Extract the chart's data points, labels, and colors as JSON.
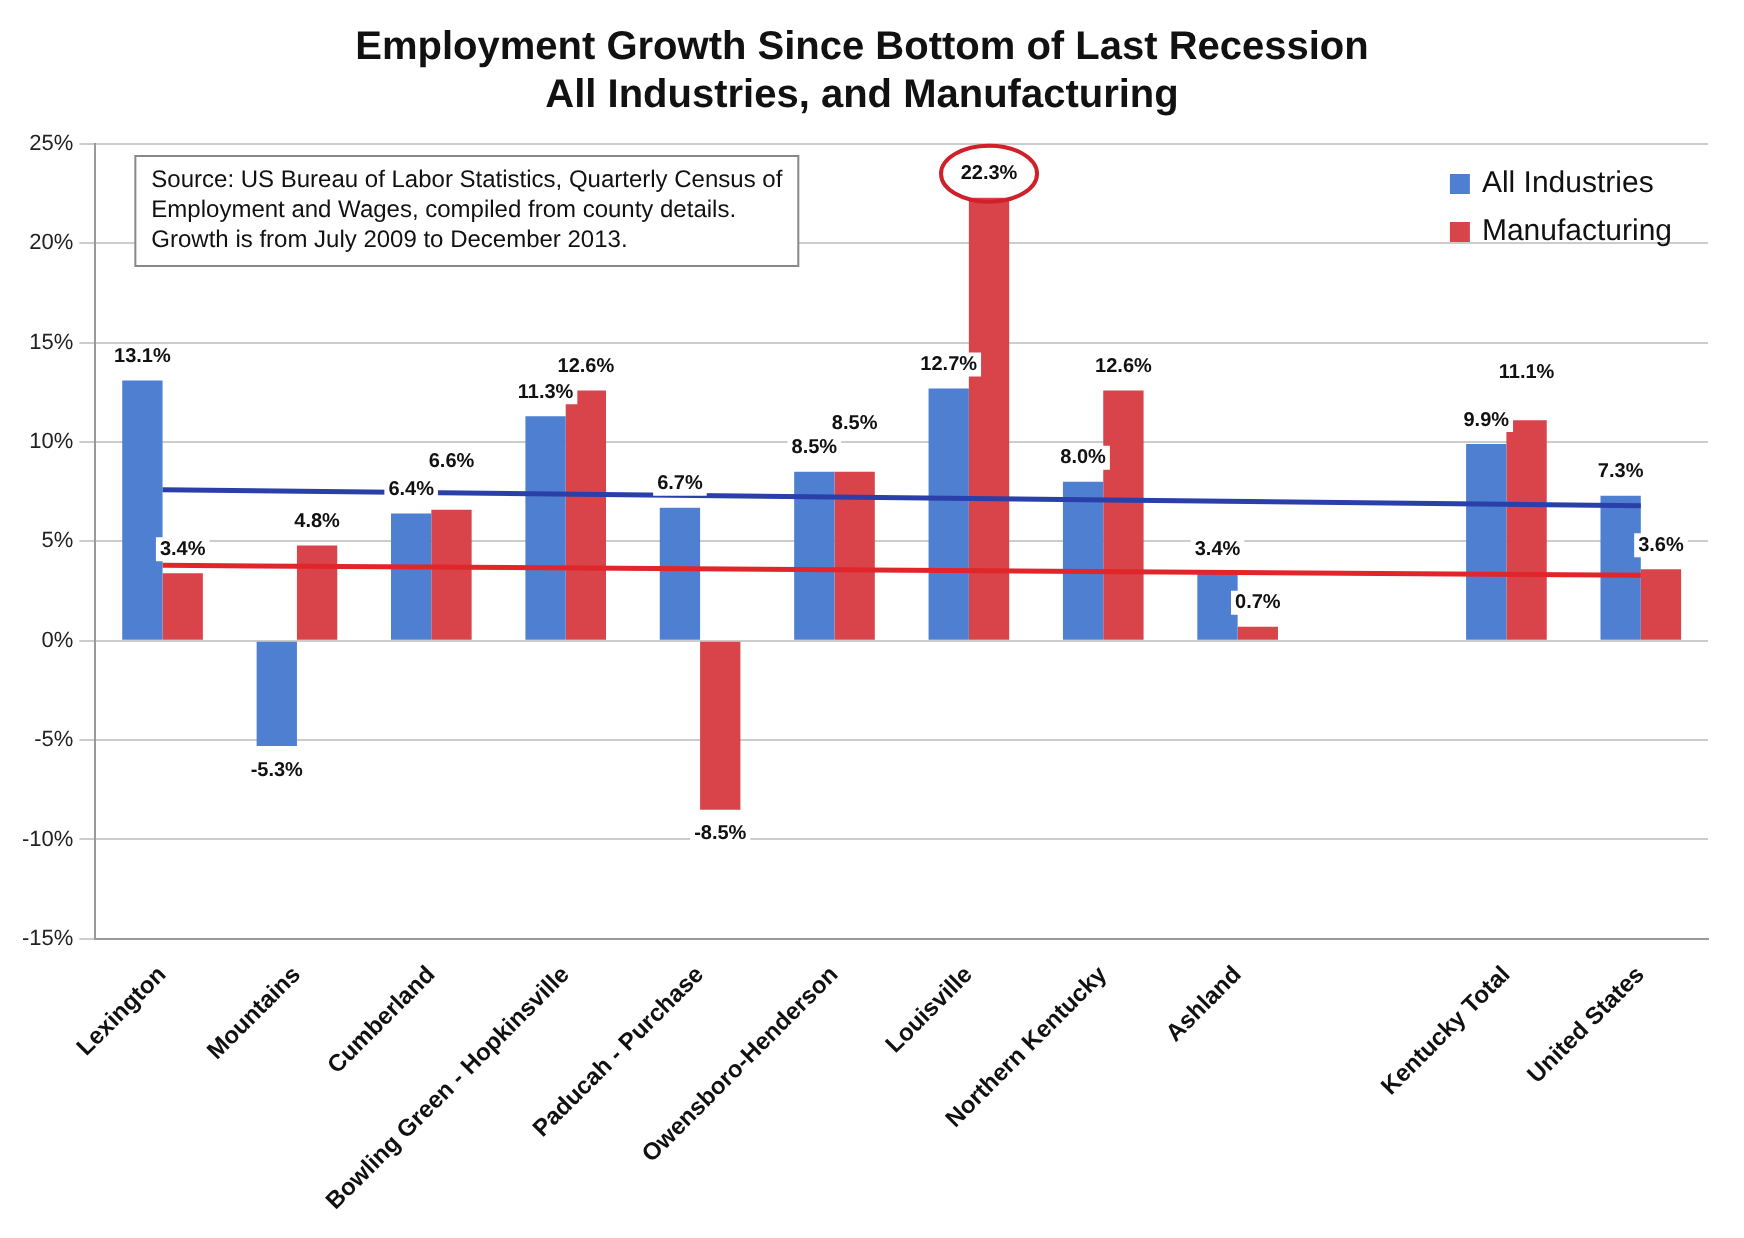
{
  "chart_data": {
    "type": "bar",
    "title": "Employment Growth Since Bottom of Last Recession\nAll Industries, and Manufacturing",
    "categories": [
      "Lexington",
      "Mountains",
      "Cumberland",
      "Bowling Green - Hopkinsville",
      "Paducah - Purchase",
      "Owensboro-Henderson",
      "Louisville",
      "Northern Kentucky",
      "Ashland",
      null,
      "Kentucky Total",
      "United States"
    ],
    "series": [
      {
        "name": "All Industries",
        "color": "#4f7fd0",
        "values": [
          13.1,
          -5.3,
          6.4,
          11.3,
          6.7,
          8.5,
          12.7,
          8.0,
          3.4,
          null,
          9.9,
          7.3
        ],
        "value_labels": [
          "13.1%",
          "-5.3%",
          "6.4%",
          "11.3%",
          "6.7%",
          "8.5%",
          "12.7%",
          "8.0%",
          "3.4%",
          null,
          "9.9%",
          "7.3%"
        ]
      },
      {
        "name": "Manufacturing",
        "color": "#d9434a",
        "values": [
          3.4,
          4.8,
          6.6,
          12.6,
          -8.5,
          8.5,
          22.3,
          12.6,
          0.7,
          null,
          11.1,
          3.6
        ],
        "value_labels": [
          "3.4%",
          "4.8%",
          "6.6%",
          "12.6%",
          "-8.5%",
          "8.5%",
          "22.3%",
          "12.6%",
          "0.7%",
          null,
          "11.1%",
          "3.6%"
        ]
      },
      {
        "type": "line",
        "color": "#2a3fa8",
        "values": [
          7.6,
          null,
          null,
          null,
          null,
          null,
          null,
          null,
          null,
          null,
          null,
          6.8
        ]
      },
      {
        "type": "line",
        "color": "#e0262a",
        "values": [
          3.8,
          null,
          null,
          null,
          null,
          null,
          null,
          null,
          null,
          null,
          null,
          3.3
        ]
      }
    ],
    "ylim": [
      -15,
      25
    ],
    "yticks": [
      {
        "value": -15,
        "label": "-15%"
      },
      {
        "value": -10,
        "label": "-10%"
      },
      {
        "value": -5,
        "label": "-5%"
      },
      {
        "value": 0,
        "label": "0%"
      },
      {
        "value": 5,
        "label": "5%"
      },
      {
        "value": 10,
        "label": "10%"
      },
      {
        "value": 15,
        "label": "15%"
      },
      {
        "value": 20,
        "label": "20%"
      },
      {
        "value": 25,
        "label": "25%"
      }
    ],
    "grid": "y",
    "legend": "top right",
    "annotations": [
      "Source: US Bureau of Labor Statistics, Quarterly Census of\nEmployment and Wages, compiled from county details.\nGrowth is from July 2009 to December 2013."
    ]
  }
}
